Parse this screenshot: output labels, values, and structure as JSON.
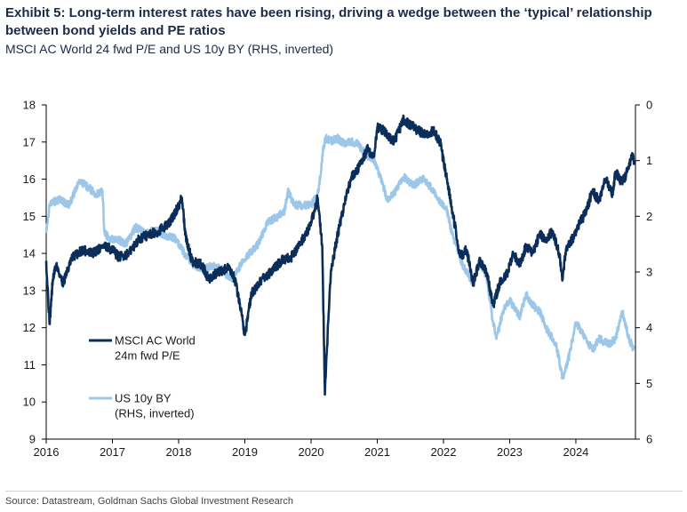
{
  "header": {
    "title": "Exhibit 5: Long-term interest rates have been rising, driving a wedge between the ‘typical’ relationship between bond yields and PE ratios",
    "subtitle": "MSCI AC World 24 fwd P/E and US 10y BY (RHS, inverted)"
  },
  "footer": {
    "source": "Source: Datastream, Goldman Sachs Global Investment Research"
  },
  "chart_data": {
    "type": "line",
    "title": "Exhibit 5: Long-term interest rates have been rising, driving a wedge between the ‘typical’ relationship between bond yields and PE ratios",
    "subtitle": "MSCI AC World 24 fwd P/E and US 10y BY (RHS, inverted)",
    "xlabel": "",
    "ylabel_left": "",
    "ylabel_right": "",
    "xlim": [
      2016,
      2024.9
    ],
    "ylim_left": [
      9,
      18
    ],
    "ylim_right": [
      6,
      0
    ],
    "x_ticks": [
      "2016",
      "2017",
      "2018",
      "2019",
      "2020",
      "2021",
      "2022",
      "2023",
      "2024"
    ],
    "y_ticks_left": [
      "9",
      "10",
      "11",
      "12",
      "13",
      "14",
      "15",
      "16",
      "17",
      "18"
    ],
    "y_ticks_right": [
      "0",
      "1",
      "2",
      "3",
      "4",
      "5",
      "6"
    ],
    "grid": false,
    "legend_position": "bottom-left",
    "series": [
      {
        "name": "MSCI AC World 24m fwd P/E",
        "legend": [
          "MSCI AC World",
          "24m fwd P/E"
        ],
        "axis": "left",
        "color": "#0b2d59",
        "x": [
          2016.0,
          2016.05,
          2016.1,
          2016.15,
          2016.25,
          2016.4,
          2016.55,
          2016.7,
          2016.85,
          2017.0,
          2017.1,
          2017.25,
          2017.4,
          2017.55,
          2017.7,
          2017.85,
          2017.95,
          2018.05,
          2018.1,
          2018.2,
          2018.35,
          2018.45,
          2018.6,
          2018.75,
          2018.85,
          2018.95,
          2019.0,
          2019.1,
          2019.25,
          2019.4,
          2019.55,
          2019.7,
          2019.85,
          2020.0,
          2020.1,
          2020.17,
          2020.21,
          2020.25,
          2020.3,
          2020.4,
          2020.5,
          2020.6,
          2020.75,
          2020.85,
          2020.95,
          2021.0,
          2021.1,
          2021.25,
          2021.4,
          2021.55,
          2021.7,
          2021.85,
          2021.95,
          2022.05,
          2022.15,
          2022.25,
          2022.35,
          2022.45,
          2022.55,
          2022.65,
          2022.75,
          2022.85,
          2022.95,
          2023.05,
          2023.15,
          2023.25,
          2023.35,
          2023.45,
          2023.55,
          2023.65,
          2023.75,
          2023.8,
          2023.85,
          2023.95,
          2024.05,
          2024.15,
          2024.25,
          2024.35,
          2024.45,
          2024.55,
          2024.6,
          2024.7,
          2024.8,
          2024.85,
          2024.88
        ],
        "values": [
          13.8,
          12.1,
          13.3,
          13.7,
          13.2,
          13.9,
          14.1,
          14.0,
          14.2,
          14.1,
          13.9,
          14.0,
          14.4,
          14.5,
          14.6,
          14.8,
          15.1,
          15.5,
          14.5,
          13.8,
          13.7,
          13.3,
          13.5,
          13.6,
          13.3,
          12.4,
          11.8,
          12.9,
          13.3,
          13.5,
          13.8,
          13.9,
          14.3,
          14.8,
          15.5,
          14.2,
          10.2,
          11.8,
          13.5,
          14.5,
          15.3,
          16.0,
          16.4,
          16.8,
          16.6,
          17.4,
          17.3,
          17.0,
          17.6,
          17.4,
          17.2,
          17.3,
          17.0,
          16.0,
          15.0,
          13.9,
          14.1,
          13.2,
          13.8,
          13.5,
          12.6,
          13.2,
          13.4,
          14.0,
          13.7,
          14.2,
          14.0,
          14.5,
          14.4,
          14.6,
          14.0,
          13.3,
          14.1,
          14.4,
          14.8,
          15.1,
          15.7,
          15.4,
          16.0,
          15.6,
          16.2,
          15.9,
          16.3,
          16.7,
          16.5
        ]
      },
      {
        "name": "US 10y BY (RHS, inverted)",
        "legend": [
          "US 10y BY",
          "(RHS, inverted)"
        ],
        "axis": "right",
        "color": "#9cc7e8",
        "x": [
          2016.0,
          2016.05,
          2016.1,
          2016.2,
          2016.35,
          2016.45,
          2016.5,
          2016.6,
          2016.75,
          2016.85,
          2016.88,
          2016.95,
          2017.05,
          2017.2,
          2017.35,
          2017.5,
          2017.65,
          2017.8,
          2017.95,
          2018.05,
          2018.2,
          2018.35,
          2018.5,
          2018.65,
          2018.8,
          2018.95,
          2019.05,
          2019.2,
          2019.35,
          2019.5,
          2019.6,
          2019.65,
          2019.75,
          2019.85,
          2020.0,
          2020.1,
          2020.15,
          2020.18,
          2020.22,
          2020.3,
          2020.4,
          2020.5,
          2020.6,
          2020.7,
          2020.85,
          2020.95,
          2021.05,
          2021.15,
          2021.25,
          2021.4,
          2021.55,
          2021.7,
          2021.85,
          2021.95,
          2022.05,
          2022.15,
          2022.3,
          2022.45,
          2022.55,
          2022.65,
          2022.75,
          2022.8,
          2022.9,
          2023.0,
          2023.15,
          2023.25,
          2023.35,
          2023.45,
          2023.55,
          2023.7,
          2023.8,
          2023.9,
          2024.0,
          2024.1,
          2024.25,
          2024.35,
          2024.5,
          2024.6,
          2024.7,
          2024.8,
          2024.88
        ],
        "values": [
          2.3,
          1.8,
          1.75,
          1.7,
          1.8,
          1.5,
          1.35,
          1.45,
          1.6,
          1.55,
          2.3,
          2.4,
          2.4,
          2.5,
          2.2,
          2.3,
          2.25,
          2.35,
          2.4,
          2.6,
          2.85,
          2.95,
          2.9,
          2.95,
          3.15,
          2.85,
          2.7,
          2.5,
          2.1,
          2.0,
          1.9,
          1.55,
          1.8,
          1.8,
          1.8,
          1.6,
          1.2,
          0.8,
          0.6,
          0.65,
          0.6,
          0.7,
          0.65,
          0.7,
          0.9,
          1.0,
          1.3,
          1.7,
          1.6,
          1.3,
          1.45,
          1.3,
          1.55,
          1.75,
          1.9,
          2.4,
          2.9,
          3.2,
          2.8,
          3.1,
          3.9,
          4.2,
          3.7,
          3.5,
          3.8,
          3.4,
          3.6,
          3.7,
          4.0,
          4.3,
          4.9,
          4.5,
          3.9,
          4.1,
          4.4,
          4.2,
          4.3,
          4.2,
          3.7,
          4.2,
          4.4
        ]
      }
    ]
  }
}
